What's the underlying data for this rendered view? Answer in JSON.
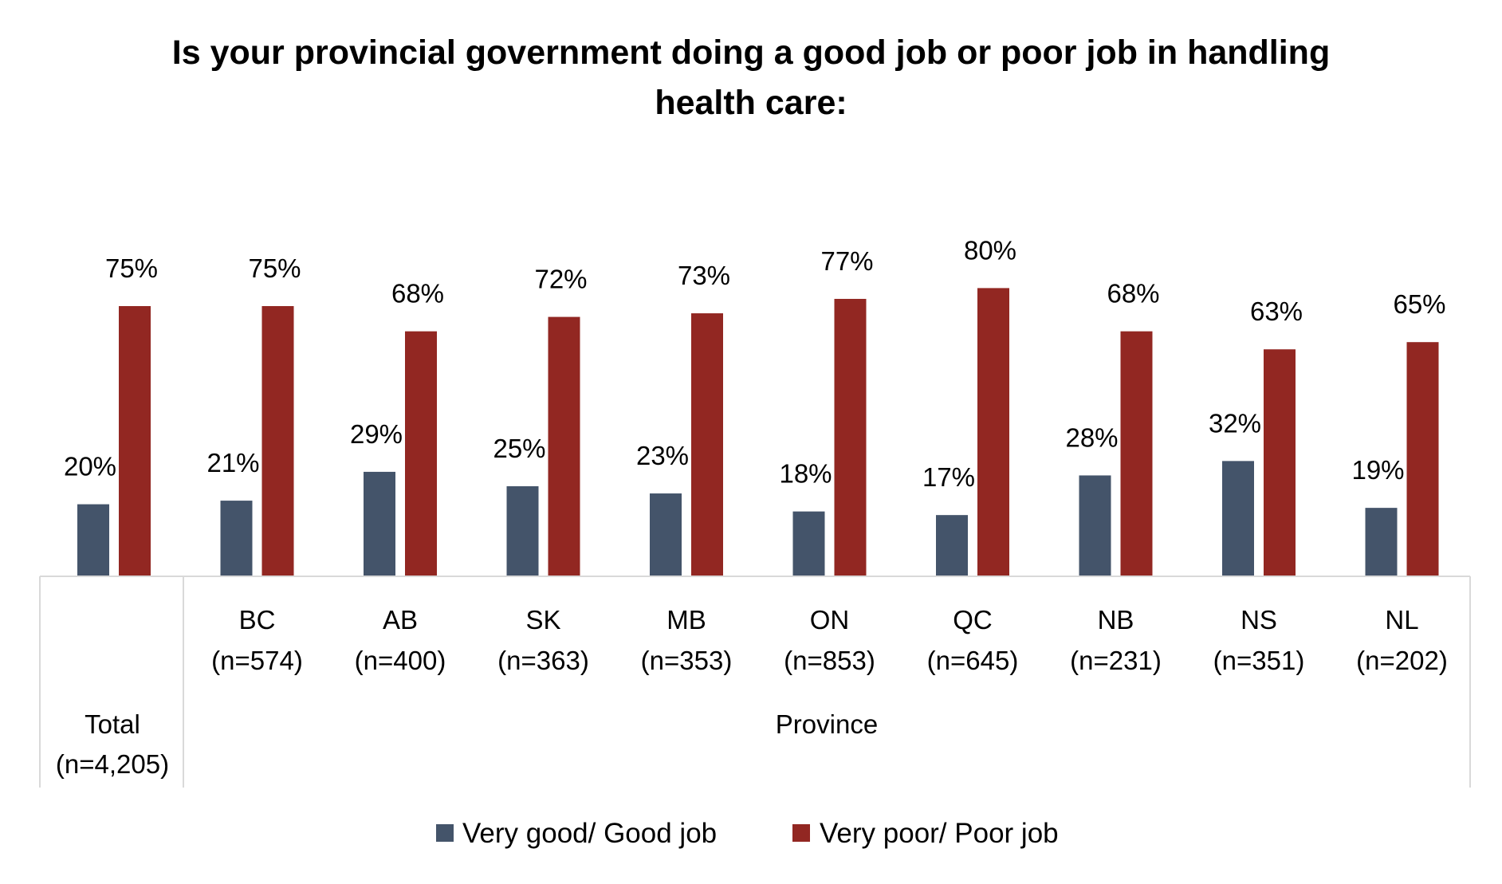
{
  "chart_data": {
    "type": "bar",
    "title_lines": [
      "Is your provincial government doing a good job or poor job in handling",
      "health care:"
    ],
    "categories": [
      "Total",
      "BC",
      "AB",
      "SK",
      "MB",
      "ON",
      "QC",
      "NB",
      "NS",
      "NL"
    ],
    "category_sublabels": [
      "(n=4,205)",
      "(n=574)",
      "(n=400)",
      "(n=363)",
      "(n=353)",
      "(n=853)",
      "(n=645)",
      "(n=231)",
      "(n=351)",
      "(n=202)"
    ],
    "group_label": "Province",
    "series": [
      {
        "name": "Very good/ Good job",
        "color": "#44546A",
        "values": [
          20,
          21,
          29,
          25,
          23,
          18,
          17,
          28,
          32,
          19
        ],
        "labels": [
          "20%",
          "21%",
          "29%",
          "25%",
          "23%",
          "18%",
          "17%",
          "28%",
          "32%",
          "19%"
        ]
      },
      {
        "name": "Very poor/ Poor job",
        "color": "#922722",
        "values": [
          75,
          75,
          68,
          72,
          73,
          77,
          80,
          68,
          63,
          65
        ],
        "labels": [
          "75%",
          "75%",
          "68%",
          "72%",
          "73%",
          "77%",
          "80%",
          "68%",
          "63%",
          "65%"
        ]
      }
    ],
    "ylim": [
      0,
      100
    ],
    "grid": false,
    "legend_position": "bottom"
  }
}
